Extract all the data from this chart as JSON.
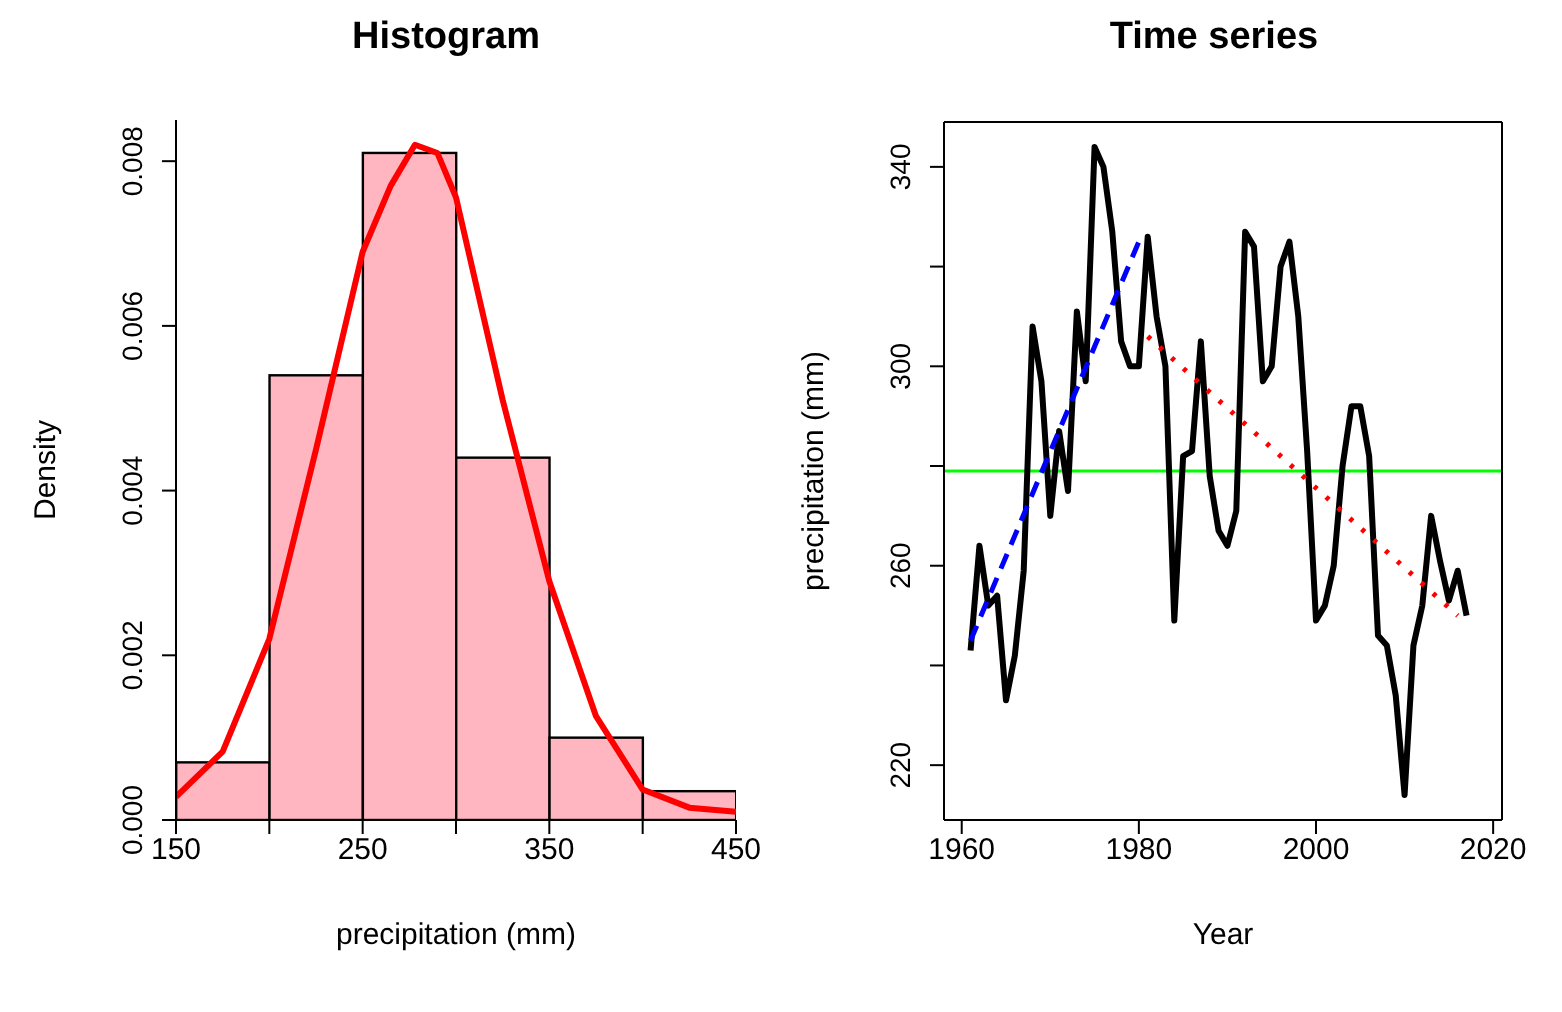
{
  "chart_data": [
    {
      "type": "histogram",
      "title": "Histogram",
      "xlabel": "precipitation (mm)",
      "ylabel": "Density",
      "xlim": [
        150,
        450
      ],
      "xticks": [
        150,
        {
          "value": 200,
          "label": null
        },
        250,
        {
          "value": 300,
          "label": null
        },
        350,
        {
          "value": 400,
          "label": null
        },
        450
      ],
      "ylim": [
        0,
        0.0085
      ],
      "yticks": [
        {
          "value": 0,
          "label": "0.000"
        },
        {
          "value": 0.002,
          "label": "0.002"
        },
        {
          "value": 0.004,
          "label": "0.004"
        },
        {
          "value": 0.006,
          "label": "0.006"
        },
        {
          "value": 0.008,
          "label": "0.008"
        }
      ],
      "series": [
        {
          "type": "histogram",
          "color": "#ffb6c1",
          "bins": [
            150,
            200,
            250,
            300,
            350,
            400,
            450
          ],
          "values": [
            0.0007,
            0.0054,
            0.0081,
            0.0044,
            0.001,
            0.00035
          ]
        },
        {
          "type": "line",
          "color": "#ff0000",
          "x": [
            150,
            175,
            200,
            225,
            250,
            265,
            278,
            290,
            300,
            325,
            350,
            375,
            400,
            425,
            450
          ],
          "values": [
            0.00028,
            0.00083,
            0.0022,
            0.0045,
            0.0069,
            0.0077,
            0.0082,
            0.0081,
            0.00756,
            0.0051,
            0.0029,
            0.00126,
            0.00037,
            0.00015,
            0.0001
          ]
        }
      ]
    },
    {
      "type": "line",
      "title": "Time series",
      "xlabel": "Year",
      "ylabel": "precipitation (mm)",
      "xlim": [
        1958,
        2021
      ],
      "xticks": [
        1960,
        1980,
        2000,
        2020
      ],
      "ylim": [
        209,
        349
      ],
      "yticks": [
        220,
        {
          "value": 240,
          "label": null
        },
        260,
        {
          "value": 280,
          "label": null
        },
        300,
        {
          "value": 320,
          "label": null
        },
        340
      ],
      "x": [
        1961,
        1962,
        1963,
        1964,
        1965,
        1966,
        1967,
        1968,
        1969,
        1970,
        1971,
        1972,
        1973,
        1974,
        1975,
        1976,
        1977,
        1978,
        1979,
        1980,
        1981,
        1982,
        1983,
        1984,
        1985,
        1986,
        1987,
        1988,
        1989,
        1990,
        1991,
        1992,
        1993,
        1994,
        1995,
        1996,
        1997,
        1998,
        1999,
        2000,
        2001,
        2002,
        2003,
        2004,
        2005,
        2006,
        2007,
        2008,
        2009,
        2010,
        2011,
        2012,
        2013,
        2014,
        2015,
        2016,
        2017
      ],
      "series": [
        {
          "color": "#000000",
          "values": [
            243,
            264,
            252,
            254,
            233,
            242,
            259,
            308,
            297,
            270,
            287,
            275,
            311,
            297,
            344,
            340,
            327,
            305,
            300,
            300,
            326,
            310,
            300,
            249,
            282,
            283,
            305,
            278,
            267,
            264,
            271,
            327,
            324,
            297,
            300,
            320,
            325,
            310,
            283,
            249,
            252,
            260,
            280,
            292,
            292,
            282,
            246,
            244,
            234,
            214,
            244,
            252,
            270,
            261,
            253,
            259,
            250
          ]
        },
        {
          "type": "line",
          "color": "#0000ff",
          "line_style": "dashed",
          "x": [
            1961,
            1980
          ],
          "values": [
            245,
            325
          ]
        },
        {
          "type": "line",
          "color": "#ff0000",
          "line_style": "dotted",
          "x": [
            1981,
            2016
          ],
          "values": [
            306,
            250
          ]
        }
      ],
      "ref_lines": [
        {
          "axis": "y",
          "value": 279,
          "color": "#00ff00"
        }
      ]
    }
  ]
}
